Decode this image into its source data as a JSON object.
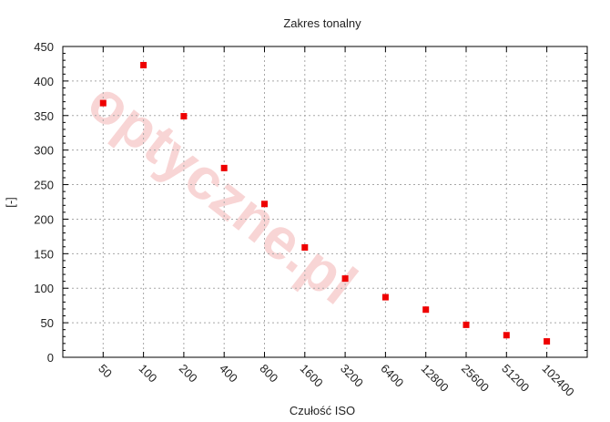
{
  "chart_data": {
    "type": "scatter",
    "title": "Zakres tonalny",
    "xlabel": "Czułość ISO",
    "ylabel": "[-]",
    "categories": [
      "50",
      "100",
      "200",
      "400",
      "800",
      "1600",
      "3200",
      "6400",
      "12800",
      "25600",
      "51200",
      "102400"
    ],
    "series": [
      {
        "values": [
          368,
          423,
          349,
          274,
          222,
          159,
          114,
          87,
          69,
          47,
          32,
          23
        ]
      }
    ],
    "ylim": [
      0,
      450
    ],
    "yticks": [
      0,
      50,
      100,
      150,
      200,
      250,
      300,
      350,
      400,
      450
    ],
    "grid": true,
    "marker_color": "#ee0000",
    "watermark": "optyczne.pl"
  }
}
